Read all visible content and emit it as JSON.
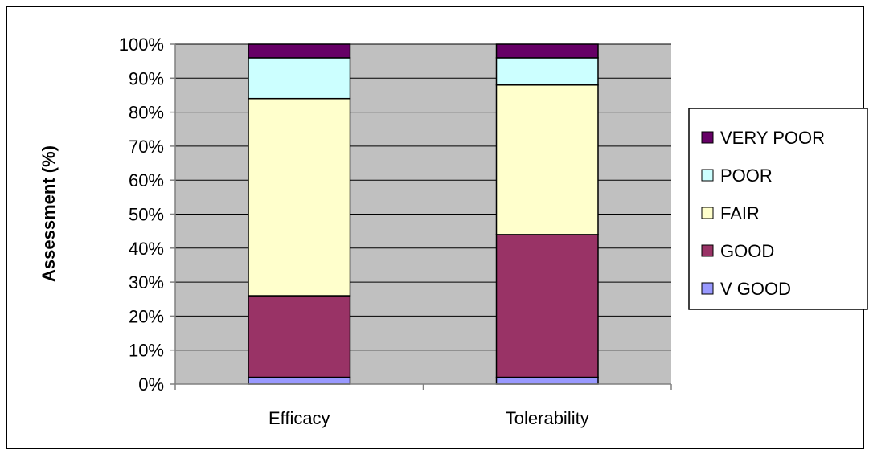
{
  "chart_data": {
    "type": "bar",
    "stacked": true,
    "percent": true,
    "categories": [
      "Efficacy",
      "Tolerability"
    ],
    "series": [
      {
        "name": "V GOOD",
        "color": "#9999ff",
        "values": [
          2,
          2
        ]
      },
      {
        "name": "GOOD",
        "color": "#993366",
        "values": [
          24,
          42
        ]
      },
      {
        "name": "FAIR",
        "color": "#ffffcc",
        "values": [
          58,
          44
        ]
      },
      {
        "name": "POOR",
        "color": "#ccffff",
        "values": [
          12,
          8
        ]
      },
      {
        "name": "VERY POOR",
        "color": "#660066",
        "values": [
          4,
          4
        ]
      }
    ],
    "title": "",
    "xlabel": "",
    "ylabel": "Assessment (%)",
    "ylim": [
      0,
      100
    ],
    "yticks": [
      "0%",
      "10%",
      "20%",
      "30%",
      "40%",
      "50%",
      "60%",
      "70%",
      "80%",
      "90%",
      "100%"
    ],
    "plot_background": "#c0c0c0",
    "grid": true,
    "legend_position": "right"
  }
}
